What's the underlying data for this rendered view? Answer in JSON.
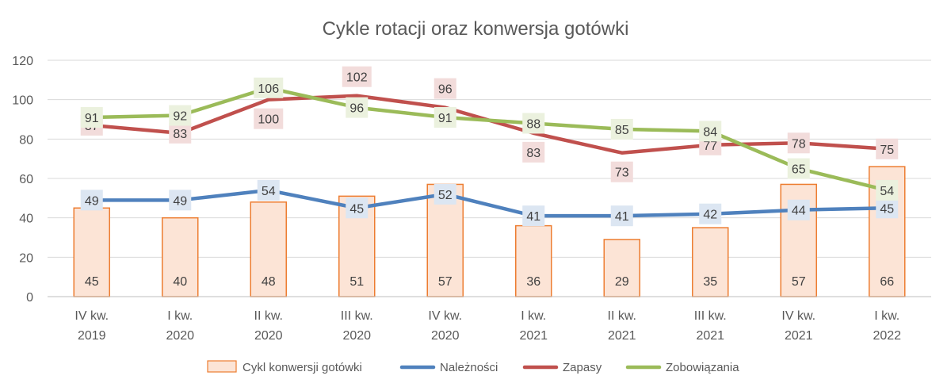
{
  "chart_data": {
    "type": "bar",
    "title": "Cykle rotacji oraz konwersja gotówki",
    "categories": [
      [
        "IV kw.",
        "2019"
      ],
      [
        "I kw.",
        "2020"
      ],
      [
        "II kw.",
        "2020"
      ],
      [
        "III kw.",
        "2020"
      ],
      [
        "IV kw.",
        "2020"
      ],
      [
        "I kw.",
        "2021"
      ],
      [
        "II kw.",
        "2021"
      ],
      [
        "III kw.",
        "2021"
      ],
      [
        "IV kw.",
        "2021"
      ],
      [
        "I kw.",
        "2022"
      ]
    ],
    "ylim": [
      0,
      120
    ],
    "yticks": [
      "0",
      "20",
      "40",
      "60",
      "80",
      "100",
      "120"
    ],
    "grid": true,
    "legend_position": "bottom",
    "series": [
      {
        "name": "Cykl konwersji gotówki",
        "kind": "bar",
        "color": "#ED7D31",
        "fill": "#FCE4D6",
        "values": [
          45,
          40,
          48,
          51,
          57,
          36,
          29,
          35,
          57,
          66
        ]
      },
      {
        "name": "Należności",
        "kind": "line",
        "color": "#4F81BD",
        "label_bg": "#DCE6F2",
        "values": [
          49,
          49,
          54,
          45,
          52,
          41,
          41,
          42,
          44,
          45
        ]
      },
      {
        "name": "Zapasy",
        "kind": "line",
        "color": "#C0504D",
        "label_bg": "#F2DCDB",
        "values": [
          87,
          83,
          100,
          102,
          96,
          83,
          73,
          77,
          78,
          75
        ]
      },
      {
        "name": "Zobowiązania",
        "kind": "line",
        "color": "#9BBB59",
        "label_bg": "#EBF1DE",
        "values": [
          91,
          92,
          106,
          96,
          91,
          88,
          85,
          84,
          65,
          54
        ]
      }
    ]
  }
}
